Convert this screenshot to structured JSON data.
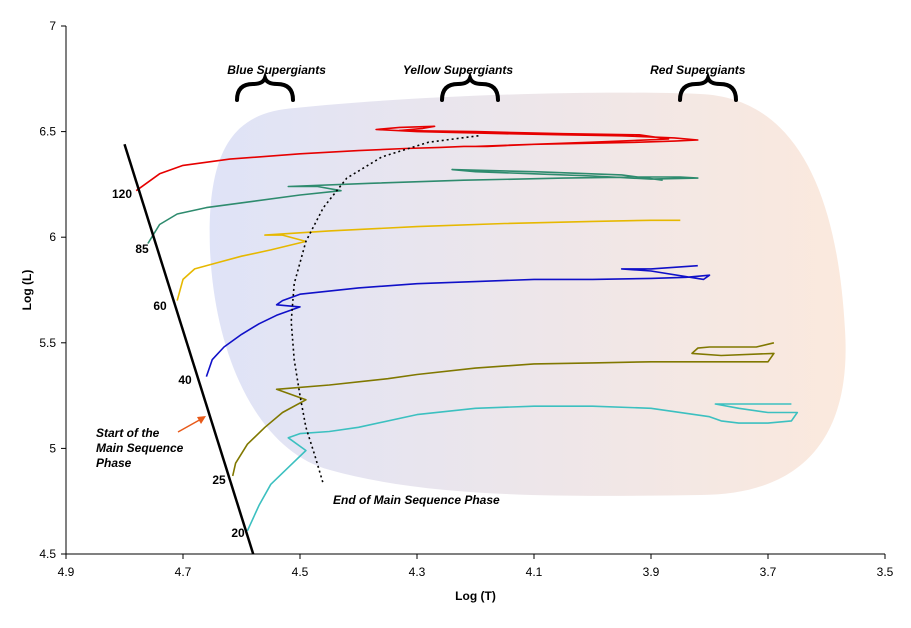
{
  "chart_data": {
    "type": "line",
    "title": "",
    "xlabel": "Log (T)",
    "ylabel": "Log (L)",
    "xlim": [
      4.9,
      3.5
    ],
    "ylim": [
      4.5,
      7.0
    ],
    "x_reversed": true,
    "x_ticks": [
      "4.9",
      "4.7",
      "4.5",
      "4.3",
      "4.1",
      "3.9",
      "3.7",
      "3.5"
    ],
    "y_ticks": [
      "4.5",
      "5",
      "5.5",
      "6",
      "6.5",
      "7"
    ],
    "grid": false,
    "legend": "none",
    "region_labels": [
      {
        "text": "Blue Supergiants",
        "x": 4.54,
        "y": 6.83
      },
      {
        "text": "Yellow Supergiants",
        "x": 4.23,
        "y": 6.83
      },
      {
        "text": "Red Supergiants",
        "x": 3.82,
        "y": 6.83
      }
    ],
    "annotations": {
      "start_label": [
        "Start of the",
        "Main Sequence",
        "Phase"
      ],
      "end_label": "End of Main Sequence Phase"
    },
    "main_sequence_line": {
      "x": [
        4.8,
        4.58
      ],
      "y": [
        6.44,
        4.5
      ]
    },
    "end_main_sequence_curve": {
      "x": [
        4.195,
        4.28,
        4.36,
        4.42,
        4.46,
        4.49,
        4.51,
        4.515,
        4.51,
        4.5,
        4.49,
        4.475,
        4.46
      ],
      "y": [
        6.48,
        6.45,
        6.38,
        6.28,
        6.14,
        5.98,
        5.78,
        5.6,
        5.42,
        5.25,
        5.1,
        4.97,
        4.83
      ]
    },
    "series": [
      {
        "name": "120",
        "color": "#e60000",
        "x": [
          4.78,
          4.74,
          4.7,
          4.62,
          4.5,
          4.4,
          4.32,
          4.26,
          4.22,
          4.18,
          4.1,
          4.0,
          3.92,
          3.86,
          3.82,
          3.86,
          3.95,
          4.05,
          4.15,
          4.22,
          4.3,
          4.37,
          4.33,
          4.27,
          4.29,
          4.33,
          4.2,
          4.05,
          3.92,
          3.87,
          4.0,
          4.1,
          4.2
        ],
        "y": [
          6.22,
          6.3,
          6.34,
          6.37,
          6.395,
          6.41,
          6.42,
          6.425,
          6.43,
          6.43,
          6.44,
          6.445,
          6.45,
          6.455,
          6.46,
          6.47,
          6.48,
          6.485,
          6.49,
          6.495,
          6.5,
          6.51,
          6.52,
          6.525,
          6.515,
          6.505,
          6.5,
          6.49,
          6.485,
          6.465,
          6.45,
          6.44,
          6.43
        ]
      },
      {
        "name": "85",
        "color": "#2e8b6e",
        "x": [
          4.76,
          4.74,
          4.71,
          4.66,
          4.58,
          4.5,
          4.43,
          4.47,
          4.52,
          4.38,
          4.22,
          4.05,
          3.92,
          3.85,
          3.82,
          3.9,
          4.0,
          4.1,
          4.2,
          4.24,
          4.1,
          3.95,
          3.88
        ],
        "y": [
          5.97,
          6.06,
          6.11,
          6.14,
          6.17,
          6.2,
          6.22,
          6.24,
          6.24,
          6.255,
          6.27,
          6.28,
          6.285,
          6.285,
          6.28,
          6.275,
          6.29,
          6.3,
          6.31,
          6.32,
          6.31,
          6.295,
          6.27
        ]
      },
      {
        "name": "60",
        "color": "#e6b800",
        "x": [
          4.71,
          4.7,
          4.68,
          4.64,
          4.6,
          4.55,
          4.49,
          4.53,
          4.56,
          4.45,
          4.3,
          4.15,
          4.0,
          3.9,
          3.85
        ],
        "y": [
          5.7,
          5.8,
          5.85,
          5.88,
          5.91,
          5.94,
          5.98,
          6.01,
          6.01,
          6.03,
          6.05,
          6.065,
          6.075,
          6.08,
          6.08
        ]
      },
      {
        "name": "40",
        "color": "#1010c8",
        "x": [
          4.66,
          4.65,
          4.63,
          4.6,
          4.57,
          4.54,
          4.5,
          4.54,
          4.53,
          4.5,
          4.4,
          4.3,
          4.2,
          4.1,
          4.0,
          3.9,
          3.84,
          3.8,
          3.81,
          3.9,
          3.95,
          3.9,
          3.82
        ],
        "y": [
          5.34,
          5.42,
          5.48,
          5.54,
          5.59,
          5.63,
          5.67,
          5.68,
          5.7,
          5.73,
          5.76,
          5.78,
          5.79,
          5.8,
          5.8,
          5.805,
          5.81,
          5.82,
          5.8,
          5.84,
          5.85,
          5.85,
          5.865
        ]
      },
      {
        "name": "25",
        "color": "#807800",
        "x": [
          4.615,
          4.61,
          4.59,
          4.56,
          4.53,
          4.49,
          4.54,
          4.45,
          4.35,
          4.3,
          4.2,
          4.1,
          4.0,
          3.9,
          3.8,
          3.7,
          3.69,
          3.78,
          3.83,
          3.82,
          3.8,
          3.75,
          3.72,
          3.69
        ],
        "y": [
          4.87,
          4.93,
          5.02,
          5.1,
          5.17,
          5.23,
          5.28,
          5.3,
          5.33,
          5.35,
          5.38,
          5.4,
          5.405,
          5.41,
          5.41,
          5.41,
          5.45,
          5.44,
          5.45,
          5.475,
          5.48,
          5.48,
          5.48,
          5.5
        ]
      },
      {
        "name": "20",
        "color": "#3cc0c0",
        "x": [
          4.59,
          4.57,
          4.55,
          4.52,
          4.49,
          4.52,
          4.5,
          4.45,
          4.4,
          4.3,
          4.2,
          4.1,
          4.0,
          3.9,
          3.8,
          3.78,
          3.75,
          3.73,
          3.7,
          3.66,
          3.65,
          3.7,
          3.75,
          3.79,
          3.74,
          3.7,
          3.66
        ],
        "y": [
          4.61,
          4.73,
          4.83,
          4.91,
          4.99,
          5.05,
          5.07,
          5.08,
          5.1,
          5.16,
          5.19,
          5.2,
          5.2,
          5.19,
          5.15,
          5.13,
          5.12,
          5.12,
          5.12,
          5.13,
          5.17,
          5.17,
          5.19,
          5.21,
          5.21,
          5.21,
          5.21
        ]
      }
    ],
    "envelope_colors": {
      "blue": "#dfe3f7",
      "red": "#fbe9dd"
    }
  }
}
